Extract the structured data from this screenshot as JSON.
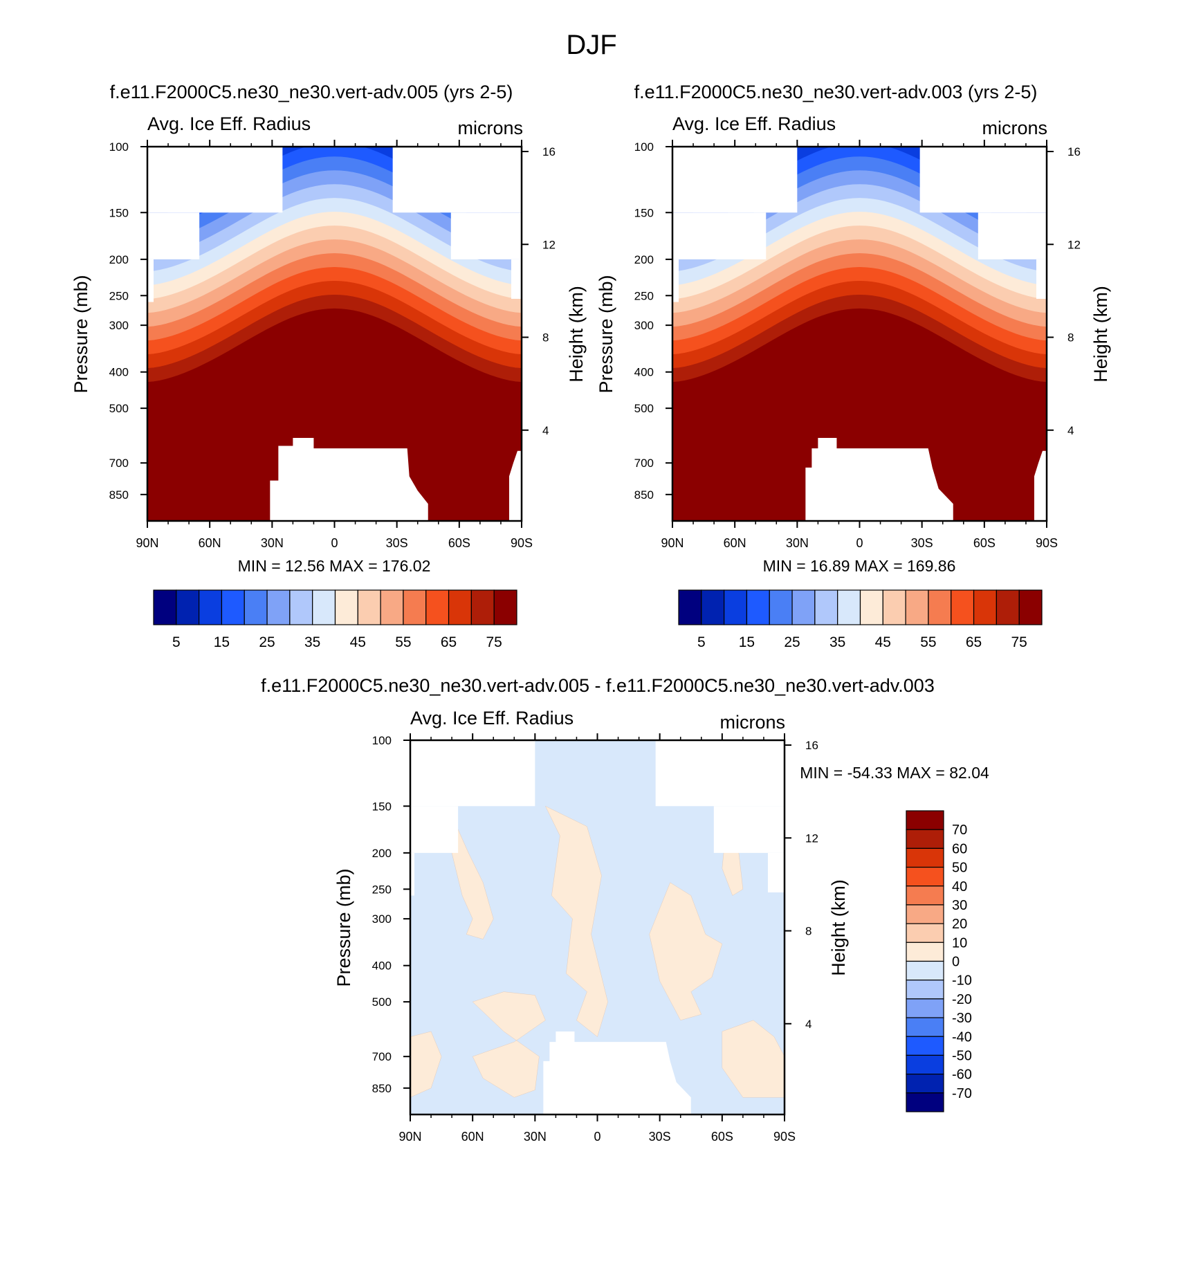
{
  "title": "DJF",
  "colors": {
    "abs_scale": [
      "#00007f",
      "#0022b0",
      "#0a3ee0",
      "#1e5aff",
      "#4a7ff5",
      "#7fa2f7",
      "#b0c8fb",
      "#d8e8fb",
      "#fdebd8",
      "#fbcdb0",
      "#f8a985",
      "#f57c50",
      "#f5511e",
      "#d93508",
      "#ae1e08",
      "#8b0000"
    ],
    "diff_scale": [
      "#00007f",
      "#0022b0",
      "#0a3ee0",
      "#1e5aff",
      "#4a7ff5",
      "#7fa2f7",
      "#b0c8fb",
      "#d8e8fb",
      "#fdebd8",
      "#fbcdb0",
      "#f8a985",
      "#f57c50",
      "#f5511e",
      "#d93508",
      "#ae1e08",
      "#8b0000"
    ]
  },
  "chart_data": [
    {
      "type": "contour",
      "title": "f.e11.F2000C5.ne30_ne30.vert-adv.005 (yrs 2-5)",
      "left_label": "Avg. Ice Eff. Radius",
      "right_label": "microns",
      "ylabel": "Pressure (mb)",
      "ylabel_right": "Height (km)",
      "x_ticks": [
        "90N",
        "60N",
        "30N",
        "0",
        "30S",
        "60S",
        "90S"
      ],
      "x_values": [
        90,
        60,
        30,
        0,
        -30,
        -60,
        -90
      ],
      "y_ticks": [
        100,
        150,
        200,
        250,
        300,
        400,
        500,
        700,
        850
      ],
      "height_ticks": [
        16,
        12,
        8,
        4
      ],
      "stats": "MIN =  12.56  MAX = 176.02",
      "colorbar_labels": [
        "5",
        "15",
        "25",
        "35",
        "45",
        "55",
        "65",
        "75"
      ],
      "colorbar_levels": [
        0,
        5,
        10,
        15,
        20,
        25,
        30,
        35,
        40,
        45,
        50,
        55,
        60,
        65,
        70,
        75
      ]
    },
    {
      "type": "contour",
      "title": "f.e11.F2000C5.ne30_ne30.vert-adv.003 (yrs 2-5)",
      "left_label": "Avg. Ice Eff. Radius",
      "right_label": "microns",
      "ylabel": "Pressure (mb)",
      "ylabel_right": "Height (km)",
      "x_ticks": [
        "90N",
        "60N",
        "30N",
        "0",
        "30S",
        "60S",
        "90S"
      ],
      "x_values": [
        90,
        60,
        30,
        0,
        -30,
        -60,
        -90
      ],
      "y_ticks": [
        100,
        150,
        200,
        250,
        300,
        400,
        500,
        700,
        850
      ],
      "height_ticks": [
        16,
        12,
        8,
        4
      ],
      "stats": "MIN =  16.89  MAX = 169.86",
      "colorbar_labels": [
        "5",
        "15",
        "25",
        "35",
        "45",
        "55",
        "65",
        "75"
      ],
      "colorbar_levels": [
        0,
        5,
        10,
        15,
        20,
        25,
        30,
        35,
        40,
        45,
        50,
        55,
        60,
        65,
        70,
        75
      ]
    },
    {
      "type": "contour",
      "title": "f.e11.F2000C5.ne30_ne30.vert-adv.005 - f.e11.F2000C5.ne30_ne30.vert-adv.003",
      "left_label": "Avg. Ice Eff. Radius",
      "right_label": "microns",
      "ylabel": "Pressure (mb)",
      "ylabel_right": "Height (km)",
      "x_ticks": [
        "90N",
        "60N",
        "30N",
        "0",
        "30S",
        "60S",
        "90S"
      ],
      "x_values": [
        90,
        60,
        30,
        0,
        -30,
        -60,
        -90
      ],
      "y_ticks": [
        100,
        150,
        200,
        250,
        300,
        400,
        500,
        700,
        850
      ],
      "height_ticks": [
        16,
        12,
        8,
        4
      ],
      "stats": "MIN = -54.33  MAX =  82.04",
      "colorbar_labels": [
        "70",
        "60",
        "50",
        "40",
        "30",
        "20",
        "10",
        "0",
        "-10",
        "-20",
        "-30",
        "-40",
        "-50",
        "-60",
        "-70"
      ],
      "colorbar_levels": [
        -70,
        -60,
        -50,
        -40,
        -30,
        -20,
        -10,
        0,
        10,
        20,
        30,
        40,
        50,
        60,
        70
      ]
    }
  ]
}
